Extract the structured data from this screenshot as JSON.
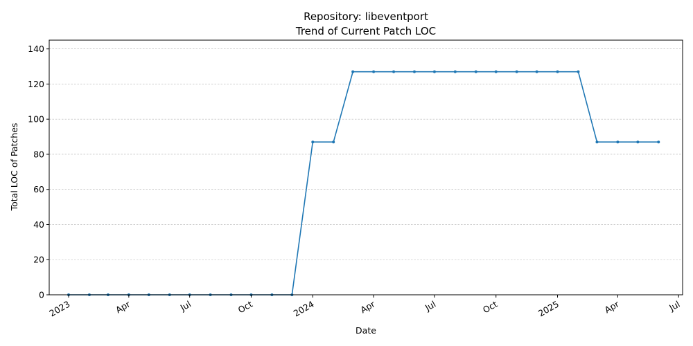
{
  "chart_data": {
    "type": "line",
    "title_line1": "Repository: libeventport",
    "title_line2": "Trend of Current Patch LOC",
    "xlabel": "Date",
    "ylabel": "Total LOC of Patches",
    "ylim": [
      0,
      145
    ],
    "xlim": [
      "2022-12-03",
      "2025-07-07"
    ],
    "grid": "y-dashed",
    "y_ticks": [
      0,
      20,
      40,
      60,
      80,
      100,
      120,
      140
    ],
    "x_ticks": [
      {
        "date": "2023-01-01",
        "label": "2023"
      },
      {
        "date": "2023-04-01",
        "label": "Apr"
      },
      {
        "date": "2023-07-01",
        "label": "Jul"
      },
      {
        "date": "2023-10-01",
        "label": "Oct"
      },
      {
        "date": "2024-01-01",
        "label": "2024"
      },
      {
        "date": "2024-04-01",
        "label": "Apr"
      },
      {
        "date": "2024-07-01",
        "label": "Jul"
      },
      {
        "date": "2024-10-01",
        "label": "Oct"
      },
      {
        "date": "2025-01-01",
        "label": "2025"
      },
      {
        "date": "2025-04-01",
        "label": "Apr"
      },
      {
        "date": "2025-07-01",
        "label": "Jul"
      }
    ],
    "series": [
      {
        "color": "#1f77b4",
        "points": [
          {
            "x": "2023-01-01",
            "y": 0
          },
          {
            "x": "2023-02-01",
            "y": 0
          },
          {
            "x": "2023-03-01",
            "y": 0
          },
          {
            "x": "2023-04-01",
            "y": 0
          },
          {
            "x": "2023-05-01",
            "y": 0
          },
          {
            "x": "2023-06-01",
            "y": 0
          },
          {
            "x": "2023-07-01",
            "y": 0
          },
          {
            "x": "2023-08-01",
            "y": 0
          },
          {
            "x": "2023-09-01",
            "y": 0
          },
          {
            "x": "2023-10-01",
            "y": 0
          },
          {
            "x": "2023-11-01",
            "y": 0
          },
          {
            "x": "2023-12-01",
            "y": 0
          },
          {
            "x": "2024-01-01",
            "y": 87
          },
          {
            "x": "2024-02-01",
            "y": 87
          },
          {
            "x": "2024-03-01",
            "y": 127
          },
          {
            "x": "2024-04-01",
            "y": 127
          },
          {
            "x": "2024-05-01",
            "y": 127
          },
          {
            "x": "2024-06-01",
            "y": 127
          },
          {
            "x": "2024-07-01",
            "y": 127
          },
          {
            "x": "2024-08-01",
            "y": 127
          },
          {
            "x": "2024-09-01",
            "y": 127
          },
          {
            "x": "2024-10-01",
            "y": 127
          },
          {
            "x": "2024-11-01",
            "y": 127
          },
          {
            "x": "2024-12-01",
            "y": 127
          },
          {
            "x": "2025-01-01",
            "y": 127
          },
          {
            "x": "2025-02-01",
            "y": 127
          },
          {
            "x": "2025-03-01",
            "y": 87
          },
          {
            "x": "2025-04-01",
            "y": 87
          },
          {
            "x": "2025-05-01",
            "y": 87
          },
          {
            "x": "2025-06-01",
            "y": 87
          }
        ]
      }
    ]
  }
}
